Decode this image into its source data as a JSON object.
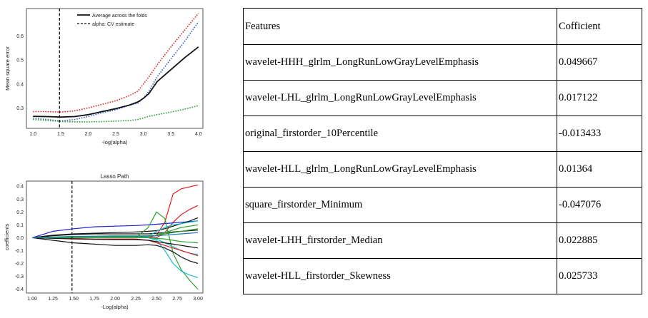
{
  "chart_data": [
    {
      "type": "line",
      "title": "",
      "xlabel": "-log(alpha)",
      "ylabel": "Mean square error",
      "xlim": [
        0.88,
        4.08
      ],
      "ylim": [
        0.215,
        0.715
      ],
      "xticks": [
        1.0,
        1.5,
        2.0,
        2.5,
        3.0,
        3.5,
        4.0
      ],
      "xtick_labels": [
        "1.0",
        "1.5",
        "2.0",
        "2.5",
        "3.0",
        "3.5",
        "4.0"
      ],
      "yticks": [
        0.3,
        0.4,
        0.5,
        0.6
      ],
      "ytick_labels": [
        "0.3",
        "0.4",
        "0.5",
        "0.6"
      ],
      "legend": {
        "placement": "top-center",
        "entries": [
          "Average across the folds",
          "alpha: CV estimate"
        ]
      },
      "cv_alpha_x": 1.48,
      "x": [
        1.0,
        1.25,
        1.5,
        1.75,
        2.0,
        2.25,
        2.5,
        2.75,
        2.9,
        3.0,
        3.1,
        3.25,
        3.5,
        3.75,
        4.0
      ],
      "series": [
        {
          "style": "dotted",
          "color": "#d62728",
          "values": [
            0.285,
            0.285,
            0.283,
            0.288,
            0.3,
            0.315,
            0.33,
            0.352,
            0.37,
            0.4,
            0.43,
            0.48,
            0.555,
            0.625,
            0.695
          ]
        },
        {
          "style": "dotted",
          "color": "#3a62c8",
          "values": [
            0.258,
            0.252,
            0.246,
            0.252,
            0.264,
            0.28,
            0.292,
            0.312,
            0.32,
            0.34,
            0.37,
            0.43,
            0.505,
            0.578,
            0.66
          ]
        },
        {
          "style": "dotted",
          "color": "#2ca02c",
          "values": [
            0.252,
            0.248,
            0.244,
            0.242,
            0.242,
            0.243,
            0.245,
            0.248,
            0.252,
            0.258,
            0.265,
            0.272,
            0.283,
            0.295,
            0.31
          ]
        },
        {
          "style": "solid",
          "color": "#111111",
          "values": [
            0.265,
            0.264,
            0.262,
            0.264,
            0.272,
            0.285,
            0.297,
            0.312,
            0.325,
            0.34,
            0.36,
            0.41,
            0.46,
            0.51,
            0.555
          ]
        }
      ]
    },
    {
      "type": "line",
      "title": "Lasso Path",
      "xlabel": "-Log(alpha)",
      "ylabel": "coefficients",
      "xlim": [
        0.93,
        3.06
      ],
      "ylim": [
        -0.43,
        0.44
      ],
      "xticks": [
        1.0,
        1.25,
        1.5,
        1.75,
        2.0,
        2.25,
        2.5,
        2.75,
        3.0
      ],
      "xtick_labels": [
        "1.00",
        "1.25",
        "1.50",
        "1.75",
        "2.00",
        "2.25",
        "2.50",
        "2.75",
        "3.00"
      ],
      "yticks": [
        -0.4,
        -0.3,
        -0.2,
        -0.1,
        0.0,
        0.1,
        0.2,
        0.3,
        0.4
      ],
      "ytick_labels": [
        "-0.4",
        "-0.3",
        "-0.2",
        "-0.1",
        "0.0",
        "0.1",
        "0.2",
        "0.3",
        "0.4"
      ],
      "cv_alpha_x": 1.48,
      "x": [
        1.0,
        1.25,
        1.5,
        1.75,
        2.0,
        2.25,
        2.4,
        2.5,
        2.6,
        2.7,
        2.8,
        2.9,
        3.0
      ],
      "series": [
        {
          "color": "#e41a1c",
          "values": [
            0,
            0,
            0,
            0,
            0,
            0,
            0,
            0.02,
            0.12,
            0.34,
            0.38,
            0.395,
            0.41
          ]
        },
        {
          "color": "#e41a1c",
          "values": [
            0,
            0,
            0,
            0,
            0,
            0,
            0,
            0,
            0.04,
            0.12,
            0.18,
            0.22,
            0.25
          ]
        },
        {
          "color": "#1f1fdd",
          "values": [
            0,
            0.05,
            0.07,
            0.085,
            0.09,
            0.095,
            0.1,
            0.105,
            0.11,
            0.115,
            0.12,
            0.125,
            0.13
          ]
        },
        {
          "color": "#111111",
          "values": [
            0,
            0.02,
            0.03,
            0.035,
            0.04,
            0.045,
            0.05,
            0.055,
            0.07,
            0.09,
            0.11,
            0.13,
            0.155
          ]
        },
        {
          "color": "#111111",
          "values": [
            0,
            0.015,
            0.025,
            0.03,
            0.03,
            0.03,
            0.03,
            0.035,
            0.04,
            0.045,
            0.05,
            0.055,
            0.06
          ]
        },
        {
          "color": "#2ca02c",
          "values": [
            0,
            0,
            0,
            0,
            0,
            0,
            0.08,
            0.2,
            0.15,
            -0.12,
            -0.25,
            -0.33,
            -0.4
          ]
        },
        {
          "color": "#17becf",
          "values": [
            0,
            0,
            0,
            0,
            0,
            0,
            0,
            -0.02,
            -0.1,
            -0.2,
            -0.26,
            -0.29,
            -0.31
          ]
        },
        {
          "color": "#17becf",
          "values": [
            0,
            0,
            0,
            0,
            0,
            0,
            0,
            -0.01,
            -0.04,
            -0.07,
            -0.1,
            -0.12,
            -0.13
          ]
        },
        {
          "color": "#111111",
          "values": [
            0,
            -0.02,
            -0.04,
            -0.05,
            -0.06,
            -0.06,
            -0.055,
            -0.06,
            -0.08,
            -0.11,
            -0.15,
            -0.18,
            -0.2
          ]
        },
        {
          "color": "#e41a1c",
          "values": [
            0,
            0,
            -0.005,
            -0.01,
            -0.01,
            -0.01,
            -0.02,
            -0.04,
            -0.06,
            -0.08,
            -0.1,
            -0.12,
            -0.14
          ]
        },
        {
          "color": "#2ca02c",
          "values": [
            0,
            0,
            0,
            0,
            0,
            0,
            0.01,
            0.02,
            0.04,
            0.06,
            0.08,
            0.09,
            0.1
          ]
        },
        {
          "color": "#17becf",
          "values": [
            0,
            0,
            0,
            0,
            0,
            0,
            0.01,
            0.05,
            0.08,
            0.1,
            0.11,
            0.12,
            0.13
          ]
        },
        {
          "color": "#2ca02c",
          "values": [
            0,
            0.005,
            0.01,
            0.012,
            0.015,
            0.015,
            0.015,
            0.02,
            0.03,
            0.04,
            0.05,
            0.06,
            0.07
          ]
        },
        {
          "color": "#111111",
          "values": [
            0,
            -0.005,
            -0.01,
            -0.012,
            -0.015,
            -0.015,
            -0.02,
            -0.03,
            -0.04,
            -0.05,
            -0.06,
            -0.07,
            -0.08
          ]
        },
        {
          "color": "#2ca02c",
          "values": [
            0,
            0,
            0,
            0,
            0,
            0,
            0,
            -0.005,
            -0.01,
            -0.02,
            -0.03,
            -0.035,
            -0.04
          ]
        },
        {
          "color": "#1f77b4",
          "values": [
            0,
            0.005,
            0.01,
            0.01,
            0.01,
            0.01,
            0.012,
            0.015,
            0.02,
            0.025,
            0.03,
            0.035,
            0.04
          ]
        }
      ]
    }
  ],
  "table": {
    "headers": [
      "Features",
      "Cofficient"
    ],
    "rows": [
      [
        "wavelet-HHH_glrlm_LongRunLowGrayLevelEmphasis",
        "0.049667"
      ],
      [
        "wavelet-LHL_glrlm_LongRunLowGrayLevelEmphasis",
        "0.017122"
      ],
      [
        "original_firstorder_10Percentile",
        "-0.013433"
      ],
      [
        "wavelet-HLL_glrlm_LongRunLowGrayLevelEmphasis",
        "0.01364"
      ],
      [
        "square_firstorder_Minimum",
        "-0.047076"
      ],
      [
        "wavelet-LHH_firstorder_Median",
        "0.022885"
      ],
      [
        "wavelet-HLL_firstorder_Skewness",
        "0.025733"
      ]
    ]
  }
}
